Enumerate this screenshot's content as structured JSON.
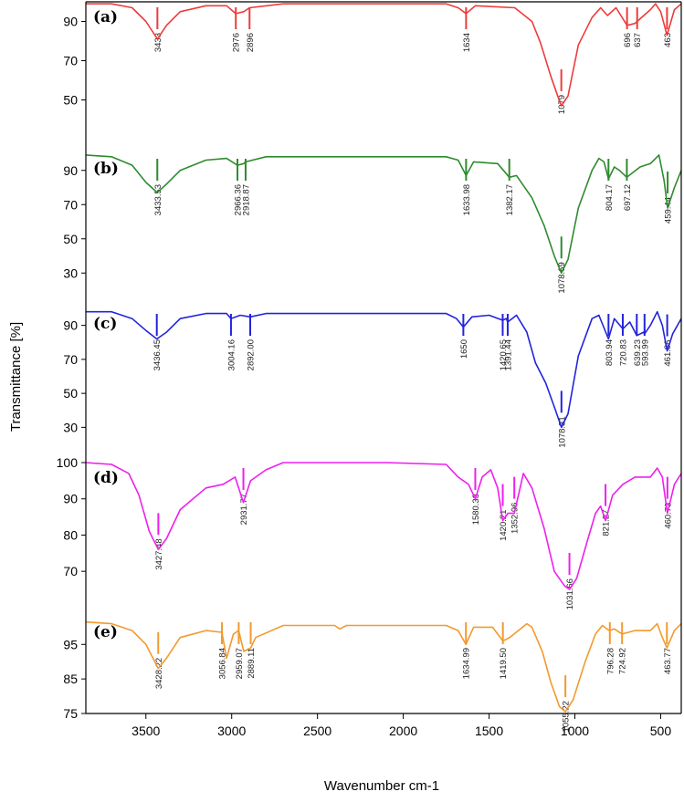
{
  "chart_data": {
    "type": "line",
    "xlabel": "Wavenumber cm-1",
    "ylabel": "Transmittance [%]",
    "x_range": [
      3850,
      380
    ],
    "x_ticks": [
      "3500",
      "3000",
      "2500",
      "2000",
      "1500",
      "1000",
      "500"
    ],
    "grid": false,
    "panels": [
      {
        "label": "(a)",
        "color": "#ee3b3b",
        "ylim": [
          40,
          100
        ],
        "yticks": [
          "90",
          "70",
          "50"
        ],
        "peaks": [
          {
            "x": 3433,
            "label": "3433"
          },
          {
            "x": 2976,
            "label": "2976"
          },
          {
            "x": 2896,
            "label": "2896"
          },
          {
            "x": 1634,
            "label": "1634"
          },
          {
            "x": 1079,
            "label": "1079"
          },
          {
            "x": 696,
            "label": "696"
          },
          {
            "x": 637,
            "label": "637"
          },
          {
            "x": 463,
            "label": "463"
          }
        ],
        "values": [
          [
            3850,
            99
          ],
          [
            3700,
            99
          ],
          [
            3580,
            97
          ],
          [
            3500,
            90
          ],
          [
            3433,
            81
          ],
          [
            3380,
            88
          ],
          [
            3300,
            95
          ],
          [
            3150,
            98
          ],
          [
            3030,
            98
          ],
          [
            2976,
            94
          ],
          [
            2930,
            95
          ],
          [
            2896,
            97
          ],
          [
            2700,
            99
          ],
          [
            2100,
            99
          ],
          [
            1750,
            99
          ],
          [
            1680,
            97
          ],
          [
            1634,
            94
          ],
          [
            1580,
            98
          ],
          [
            1350,
            97
          ],
          [
            1250,
            90
          ],
          [
            1200,
            79
          ],
          [
            1140,
            62
          ],
          [
            1100,
            52
          ],
          [
            1079,
            47
          ],
          [
            1040,
            52
          ],
          [
            980,
            78
          ],
          [
            900,
            92
          ],
          [
            850,
            97
          ],
          [
            810,
            93
          ],
          [
            760,
            97
          ],
          [
            696,
            88
          ],
          [
            650,
            89
          ],
          [
            637,
            90
          ],
          [
            560,
            96
          ],
          [
            530,
            99
          ],
          [
            500,
            95
          ],
          [
            463,
            83
          ],
          [
            420,
            96
          ],
          [
            380,
            99
          ]
        ]
      },
      {
        "label": "(b)",
        "color": "#2e8b2e",
        "ylim": [
          20,
          100
        ],
        "yticks": [
          "90",
          "70",
          "50",
          "30"
        ],
        "peaks": [
          {
            "x": 3433.53,
            "label": "3433.53"
          },
          {
            "x": 2966.36,
            "label": "2966.36"
          },
          {
            "x": 2918.87,
            "label": "2918.87"
          },
          {
            "x": 1633.98,
            "label": "1633.98"
          },
          {
            "x": 1382.17,
            "label": "1382.17"
          },
          {
            "x": 1078.69,
            "label": "1078.69"
          },
          {
            "x": 804.17,
            "label": "804.17"
          },
          {
            "x": 697.12,
            "label": "697.12"
          },
          {
            "x": 459.44,
            "label": "459.44"
          }
        ],
        "values": [
          [
            3850,
            99
          ],
          [
            3700,
            98
          ],
          [
            3580,
            93
          ],
          [
            3500,
            83
          ],
          [
            3433.53,
            77
          ],
          [
            3380,
            82
          ],
          [
            3300,
            90
          ],
          [
            3150,
            96
          ],
          [
            3030,
            97
          ],
          [
            2966.36,
            93
          ],
          [
            2930,
            94
          ],
          [
            2918.87,
            95
          ],
          [
            2800,
            98
          ],
          [
            2100,
            98
          ],
          [
            1750,
            98
          ],
          [
            1680,
            96
          ],
          [
            1633.98,
            87
          ],
          [
            1590,
            95
          ],
          [
            1450,
            94
          ],
          [
            1382.17,
            86
          ],
          [
            1340,
            87
          ],
          [
            1250,
            74
          ],
          [
            1180,
            58
          ],
          [
            1120,
            40
          ],
          [
            1078.69,
            30
          ],
          [
            1040,
            38
          ],
          [
            980,
            68
          ],
          [
            900,
            90
          ],
          [
            860,
            97
          ],
          [
            830,
            95
          ],
          [
            804.17,
            85
          ],
          [
            770,
            92
          ],
          [
            740,
            90
          ],
          [
            697.12,
            86
          ],
          [
            620,
            92
          ],
          [
            560,
            94
          ],
          [
            510,
            99
          ],
          [
            480,
            84
          ],
          [
            459.44,
            68
          ],
          [
            420,
            80
          ],
          [
            380,
            90
          ]
        ]
      },
      {
        "label": "(c)",
        "color": "#2323dd",
        "ylim": [
          20,
          100
        ],
        "yticks": [
          "90",
          "70",
          "50",
          "30"
        ],
        "peaks": [
          {
            "x": 3436.45,
            "label": "3436.45"
          },
          {
            "x": 3004.16,
            "label": "3004.16"
          },
          {
            "x": 2892.0,
            "label": "2892.00"
          },
          {
            "x": 1650,
            "label": "1650"
          },
          {
            "x": 1420.65,
            "label": "1420.65"
          },
          {
            "x": 1391.44,
            "label": "1391.44"
          },
          {
            "x": 1078.31,
            "label": "1078.31"
          },
          {
            "x": 803.94,
            "label": "803.94"
          },
          {
            "x": 720.83,
            "label": "720.83"
          },
          {
            "x": 639.23,
            "label": "639.23"
          },
          {
            "x": 593.99,
            "label": "593.99"
          },
          {
            "x": 461.86,
            "label": "461.86"
          }
        ],
        "values": [
          [
            3850,
            98
          ],
          [
            3700,
            98
          ],
          [
            3580,
            94
          ],
          [
            3500,
            87
          ],
          [
            3436.45,
            82
          ],
          [
            3380,
            86
          ],
          [
            3300,
            94
          ],
          [
            3150,
            97
          ],
          [
            3030,
            97
          ],
          [
            3004.16,
            94
          ],
          [
            2950,
            96
          ],
          [
            2892.0,
            95
          ],
          [
            2800,
            97
          ],
          [
            2100,
            97
          ],
          [
            1750,
            97
          ],
          [
            1690,
            94
          ],
          [
            1650,
            89
          ],
          [
            1600,
            95
          ],
          [
            1500,
            96
          ],
          [
            1420.65,
            93
          ],
          [
            1400,
            94
          ],
          [
            1391.44,
            92
          ],
          [
            1340,
            96
          ],
          [
            1280,
            86
          ],
          [
            1230,
            68
          ],
          [
            1170,
            56
          ],
          [
            1120,
            42
          ],
          [
            1078.31,
            30
          ],
          [
            1040,
            38
          ],
          [
            980,
            72
          ],
          [
            900,
            94
          ],
          [
            860,
            96
          ],
          [
            803.94,
            82
          ],
          [
            770,
            94
          ],
          [
            720.83,
            88
          ],
          [
            680,
            92
          ],
          [
            639.23,
            84
          ],
          [
            600,
            86
          ],
          [
            593.99,
            85
          ],
          [
            560,
            90
          ],
          [
            520,
            98
          ],
          [
            490,
            90
          ],
          [
            461.86,
            75
          ],
          [
            430,
            85
          ],
          [
            380,
            94
          ]
        ]
      },
      {
        "label": "(d)",
        "color": "#ee1fee",
        "ylim": [
          64,
          100
        ],
        "yticks": [
          "100",
          "90",
          "80",
          "70"
        ],
        "peaks": [
          {
            "x": 3427.48,
            "label": "3427.48"
          },
          {
            "x": 2931.77,
            "label": "2931.77"
          },
          {
            "x": 1580.33,
            "label": "1580.33"
          },
          {
            "x": 1420.21,
            "label": "1420.21"
          },
          {
            "x": 1352.96,
            "label": "1352.96"
          },
          {
            "x": 1031.66,
            "label": "1031.66"
          },
          {
            "x": 821.27,
            "label": "821.27"
          },
          {
            "x": 460.73,
            "label": "460.73"
          }
        ],
        "values": [
          [
            3850,
            100
          ],
          [
            3700,
            99.5
          ],
          [
            3600,
            97
          ],
          [
            3540,
            91
          ],
          [
            3480,
            81
          ],
          [
            3427.48,
            76
          ],
          [
            3380,
            79
          ],
          [
            3300,
            87
          ],
          [
            3150,
            93
          ],
          [
            3050,
            94
          ],
          [
            2980,
            96
          ],
          [
            2931.77,
            89
          ],
          [
            2890,
            95
          ],
          [
            2800,
            98
          ],
          [
            2700,
            100
          ],
          [
            2100,
            100
          ],
          [
            1750,
            99.5
          ],
          [
            1680,
            96
          ],
          [
            1620,
            94
          ],
          [
            1580.33,
            90
          ],
          [
            1540,
            96
          ],
          [
            1490,
            98
          ],
          [
            1450,
            93
          ],
          [
            1420.21,
            84
          ],
          [
            1390,
            86
          ],
          [
            1352.96,
            86
          ],
          [
            1300,
            97
          ],
          [
            1250,
            93
          ],
          [
            1180,
            82
          ],
          [
            1120,
            70
          ],
          [
            1060,
            66
          ],
          [
            1031.66,
            65
          ],
          [
            990,
            68
          ],
          [
            930,
            78
          ],
          [
            880,
            86
          ],
          [
            850,
            88
          ],
          [
            821.27,
            84
          ],
          [
            780,
            91
          ],
          [
            720,
            94
          ],
          [
            650,
            96
          ],
          [
            560,
            96
          ],
          [
            520,
            98.5
          ],
          [
            490,
            96
          ],
          [
            460.73,
            86
          ],
          [
            420,
            94
          ],
          [
            380,
            97
          ]
        ]
      },
      {
        "label": "(e)",
        "color": "#f29a2e",
        "ylim": [
          75,
          103
        ],
        "yticks": [
          "95",
          "85",
          "75"
        ],
        "peaks": [
          {
            "x": 3428.22,
            "label": "3428.22"
          },
          {
            "x": 3056.84,
            "label": "3056.84"
          },
          {
            "x": 2959.07,
            "label": "2959.07"
          },
          {
            "x": 2889.11,
            "label": "2889.11"
          },
          {
            "x": 1634.99,
            "label": "1634.99"
          },
          {
            "x": 1419.5,
            "label": "1419.50"
          },
          {
            "x": 1055.22,
            "label": "1055.22"
          },
          {
            "x": 796.28,
            "label": "796.28"
          },
          {
            "x": 724.92,
            "label": "724.92"
          },
          {
            "x": 463.77,
            "label": "463.77"
          }
        ],
        "values": [
          [
            3850,
            101.5
          ],
          [
            3700,
            101
          ],
          [
            3580,
            99
          ],
          [
            3500,
            95
          ],
          [
            3428.22,
            88
          ],
          [
            3380,
            91
          ],
          [
            3300,
            97
          ],
          [
            3150,
            99
          ],
          [
            3056.84,
            98.5
          ],
          [
            3030,
            91
          ],
          [
            2990,
            98
          ],
          [
            2959.07,
            99
          ],
          [
            2930,
            93
          ],
          [
            2889.11,
            94
          ],
          [
            2860,
            97
          ],
          [
            2700,
            100.5
          ],
          [
            2400,
            100.5
          ],
          [
            2370,
            99.5
          ],
          [
            2330,
            100.5
          ],
          [
            1750,
            100.5
          ],
          [
            1680,
            99
          ],
          [
            1634.99,
            95
          ],
          [
            1590,
            100
          ],
          [
            1480,
            100
          ],
          [
            1419.5,
            96
          ],
          [
            1380,
            97
          ],
          [
            1280,
            101
          ],
          [
            1250,
            100
          ],
          [
            1190,
            93
          ],
          [
            1140,
            84
          ],
          [
            1090,
            77
          ],
          [
            1055.22,
            75.5
          ],
          [
            1010,
            79
          ],
          [
            940,
            90
          ],
          [
            880,
            98
          ],
          [
            840,
            100.5
          ],
          [
            800,
            99
          ],
          [
            770,
            99.5
          ],
          [
            724.92,
            98
          ],
          [
            650,
            99
          ],
          [
            560,
            99
          ],
          [
            520,
            101
          ],
          [
            490,
            97
          ],
          [
            463.77,
            94
          ],
          [
            420,
            99
          ],
          [
            380,
            101
          ]
        ]
      }
    ]
  }
}
